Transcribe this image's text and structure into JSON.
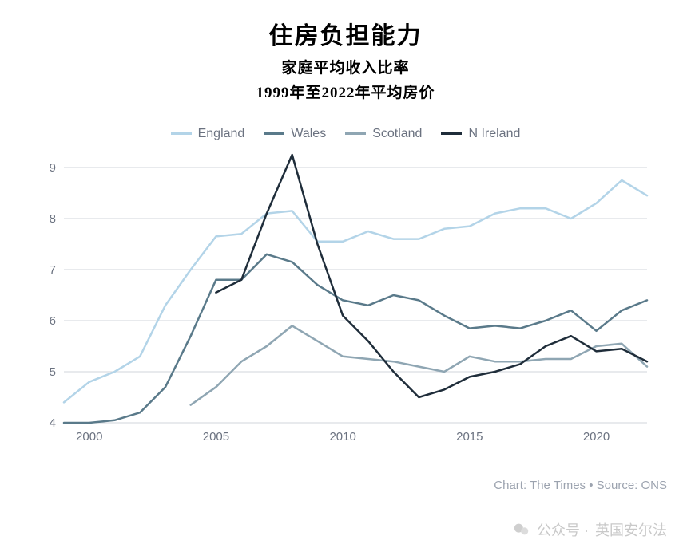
{
  "titles": {
    "main": "住房负担能力",
    "sub1": "家庭平均收入比率",
    "sub2": "1999年至2022年平均房价",
    "main_fontsize": 30,
    "sub_fontsize": 19,
    "color": "#000000"
  },
  "chart": {
    "type": "line",
    "background_color": "#ffffff",
    "grid_color": "#d1d5db",
    "axis_label_color": "#6b7280",
    "axis_label_fontsize": 15,
    "x": {
      "min": 1999,
      "max": 2022,
      "ticks": [
        2000,
        2005,
        2010,
        2015,
        2020
      ]
    },
    "y": {
      "min": 4,
      "max": 9,
      "ticks": [
        4,
        5,
        6,
        7,
        8,
        9
      ]
    },
    "line_width": 2.5,
    "series": [
      {
        "name": "England",
        "color": "#b3d4e8",
        "x": [
          1999,
          2000,
          2001,
          2002,
          2003,
          2004,
          2005,
          2006,
          2007,
          2008,
          2009,
          2010,
          2011,
          2012,
          2013,
          2014,
          2015,
          2016,
          2017,
          2018,
          2019,
          2020,
          2021,
          2022
        ],
        "y": [
          4.4,
          4.8,
          5.0,
          5.3,
          6.3,
          7.0,
          7.65,
          7.7,
          8.1,
          8.15,
          7.55,
          7.55,
          7.75,
          7.6,
          7.6,
          7.8,
          7.85,
          8.1,
          8.2,
          8.2,
          8.0,
          8.3,
          8.75,
          8.45
        ]
      },
      {
        "name": "Wales",
        "color": "#5a7a8a",
        "x": [
          1999,
          2000,
          2001,
          2002,
          2003,
          2004,
          2005,
          2006,
          2007,
          2008,
          2009,
          2010,
          2011,
          2012,
          2013,
          2014,
          2015,
          2016,
          2017,
          2018,
          2019,
          2020,
          2021,
          2022
        ],
        "y": [
          4.0,
          4.0,
          4.05,
          4.2,
          4.7,
          5.7,
          6.8,
          6.8,
          7.3,
          7.15,
          6.7,
          6.4,
          6.3,
          6.5,
          6.4,
          6.1,
          5.85,
          5.9,
          5.85,
          6.0,
          6.2,
          5.8,
          6.2,
          6.4
        ]
      },
      {
        "name": "Scotland",
        "color": "#8fa6b3",
        "x": [
          2004,
          2005,
          2006,
          2007,
          2008,
          2009,
          2010,
          2011,
          2012,
          2013,
          2014,
          2015,
          2016,
          2017,
          2018,
          2019,
          2020,
          2021,
          2022
        ],
        "y": [
          4.35,
          4.7,
          5.2,
          5.5,
          5.9,
          5.6,
          5.3,
          5.25,
          5.2,
          5.1,
          5.0,
          5.3,
          5.2,
          5.2,
          5.25,
          5.25,
          5.5,
          5.55,
          5.1
        ]
      },
      {
        "name": "N Ireland",
        "color": "#1f2d3a",
        "x": [
          2005,
          2006,
          2007,
          2008,
          2009,
          2010,
          2011,
          2012,
          2013,
          2014,
          2015,
          2016,
          2017,
          2018,
          2019,
          2020,
          2021,
          2022
        ],
        "y": [
          6.55,
          6.8,
          8.1,
          9.25,
          7.5,
          6.1,
          5.6,
          5.0,
          4.5,
          4.65,
          4.9,
          5.0,
          5.15,
          5.5,
          5.7,
          5.4,
          5.45,
          5.2
        ]
      }
    ]
  },
  "source_text": "Chart: The Times • Source: ONS",
  "watermark": {
    "prefix": "公众号 ·",
    "name": "英国安尔法",
    "color": "rgba(120,120,120,0.4)"
  }
}
